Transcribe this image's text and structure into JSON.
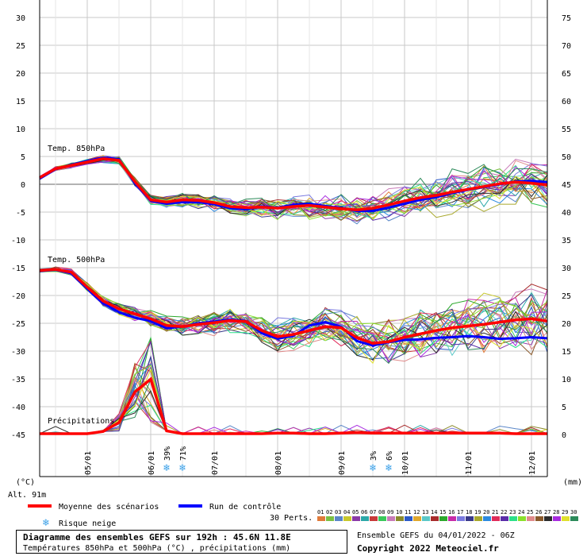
{
  "chart_data": {
    "type": "line",
    "x_dates": [
      "05/01",
      "06/01",
      "07/01",
      "08/01",
      "09/01",
      "10/01",
      "11/01",
      "12/01"
    ],
    "left_axis_ticks": [
      30,
      25,
      20,
      15,
      10,
      5,
      0,
      -5,
      -10,
      -15,
      -20,
      -25,
      -30,
      -35,
      -40,
      -45
    ],
    "right_axis_ticks": [
      75,
      70,
      65,
      60,
      55,
      50,
      45,
      40,
      35,
      30,
      25,
      20,
      15,
      10,
      5,
      0
    ],
    "left_unit": "(°C)",
    "right_unit": "(mm)",
    "altitude": "Alt. 91m",
    "panel_labels": {
      "t850": "Temp. 850hPa",
      "t500": "Temp. 500hPa",
      "precip": "Précipitations"
    },
    "hours": [
      0,
      6,
      12,
      18,
      24,
      30,
      36,
      42,
      48,
      54,
      60,
      66,
      72,
      78,
      84,
      90,
      96,
      102,
      108,
      114,
      120,
      126,
      132,
      138,
      144,
      150,
      156,
      162,
      168,
      174,
      180,
      186,
      192
    ],
    "t850_mean": [
      1.2,
      2.8,
      3.4,
      4.0,
      4.6,
      4.3,
      0.5,
      -2.8,
      -3.2,
      -2.8,
      -2.9,
      -3.3,
      -4.0,
      -4.2,
      -4.1,
      -4.3,
      -4.0,
      -3.8,
      -4.1,
      -4.4,
      -4.6,
      -4.3,
      -3.7,
      -3.0,
      -2.4,
      -2.0,
      -1.4,
      -0.9,
      -0.4,
      0.1,
      0.4,
      0.2,
      -0.1
    ],
    "t850_control": [
      1.0,
      2.7,
      3.5,
      4.2,
      4.8,
      4.5,
      0.2,
      -3.0,
      -3.5,
      -3.2,
      -3.2,
      -3.6,
      -4.3,
      -4.5,
      -4.0,
      -4.2,
      -3.7,
      -3.5,
      -3.9,
      -4.3,
      -4.8,
      -4.8,
      -4.2,
      -3.5,
      -2.8,
      -2.3,
      -1.6,
      -1.0,
      -0.5,
      0.0,
      0.5,
      0.6,
      0.4
    ],
    "t500_mean": [
      -15.5,
      -15.3,
      -15.8,
      -18.5,
      -21.0,
      -22.4,
      -23.3,
      -24.2,
      -25.4,
      -25.6,
      -25.2,
      -24.9,
      -24.5,
      -24.7,
      -26.3,
      -27.4,
      -27.0,
      -26.3,
      -25.6,
      -25.8,
      -27.6,
      -28.6,
      -28.3,
      -27.5,
      -26.9,
      -26.3,
      -25.8,
      -25.5,
      -25.2,
      -24.8,
      -24.4,
      -24.2,
      -24.6
    ],
    "t500_control": [
      -15.6,
      -15.4,
      -16.0,
      -18.8,
      -21.4,
      -23.0,
      -24.0,
      -24.6,
      -25.9,
      -25.6,
      -25.0,
      -24.7,
      -24.3,
      -24.6,
      -26.8,
      -27.8,
      -27.2,
      -25.4,
      -24.8,
      -25.6,
      -28.2,
      -29.0,
      -28.4,
      -28.0,
      -27.9,
      -27.6,
      -27.5,
      -27.3,
      -27.5,
      -27.8,
      -27.7,
      -27.5,
      -27.7
    ],
    "precip_mean_mm": [
      0,
      0,
      0,
      0,
      0.4,
      2.0,
      7.5,
      9.8,
      0.5,
      0,
      0,
      0,
      0,
      0,
      0,
      0.1,
      0.1,
      0,
      0,
      0.1,
      0.2,
      0.1,
      0.1,
      0.1,
      0.1,
      0.1,
      0.1,
      0.1,
      0.1,
      0.1,
      0,
      0,
      0
    ],
    "snow_risk": [
      {
        "hour": 48,
        "label": "39%"
      },
      {
        "hour": 54,
        "label": "71%"
      },
      {
        "hour": 126,
        "label": "3%"
      },
      {
        "hour": 132,
        "label": "6%"
      }
    ],
    "members": 30,
    "member_labels": [
      "01",
      "02",
      "03",
      "04",
      "05",
      "06",
      "07",
      "08",
      "09",
      "10",
      "11",
      "12",
      "13",
      "14",
      "15",
      "16",
      "17",
      "18",
      "19",
      "20",
      "21",
      "22",
      "23",
      "24",
      "25",
      "26",
      "27",
      "28",
      "29",
      "30"
    ],
    "member_colors": [
      "#e07a3a",
      "#7ac043",
      "#5a86c8",
      "#c8c82c",
      "#8a3aa8",
      "#2ca8a8",
      "#c83a3a",
      "#3ac85a",
      "#c87ab8",
      "#8a8a2c",
      "#2c5ac8",
      "#e0a82c",
      "#5ac8c8",
      "#a82c2c",
      "#2ca82c",
      "#c82ca8",
      "#7a7ae0",
      "#3a3a8a",
      "#a8a82c",
      "#2c8ae0",
      "#e02c5a",
      "#5a2ca8",
      "#2ce08a",
      "#8ae02c",
      "#e08a8a",
      "#8a5a2c",
      "#2c2c2c",
      "#a82ce0",
      "#e0e02c",
      "#2c8a5a"
    ],
    "legend": {
      "mean": "Moyenne des scénarios",
      "control": "Run de contrôle",
      "snow": "Risque neige",
      "perts": "30 Perts."
    },
    "colors": {
      "mean": "#ff0000",
      "control": "#0000ff",
      "grid": "#c8c8c8",
      "zero": "#999999"
    }
  },
  "footer": {
    "title": "Diagramme des ensembles GEFS sur 192h : 45.6N 11.8E",
    "subtitle": "Températures 850hPa et 500hPa (°C) , précipitations (mm)",
    "run": "Ensemble GEFS du 04/01/2022 - 06Z",
    "copyright": "Copyright 2022 Meteociel.fr"
  }
}
